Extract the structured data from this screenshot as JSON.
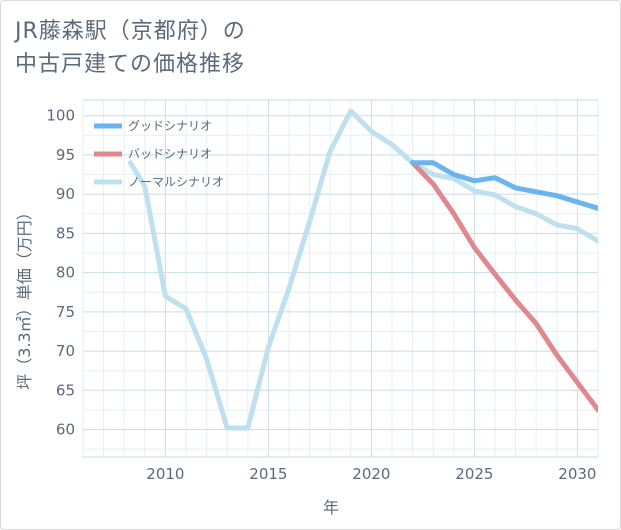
{
  "title_lines": [
    "JR藤森駅（京都府）の",
    "中古戸建ての価格推移"
  ],
  "chart_data": {
    "type": "line",
    "title": "JR藤森駅（京都府）の中古戸建ての価格推移",
    "xlabel": "年",
    "ylabel": "坪（3.3㎡）単価（万円）",
    "xlim": [
      2006,
      2031
    ],
    "ylim": [
      56.5,
      102
    ],
    "xticks": [
      2010,
      2015,
      2020,
      2025,
      2030
    ],
    "yticks": [
      60,
      65,
      70,
      75,
      80,
      85,
      90,
      95,
      100
    ],
    "grid": true,
    "legend_position": "top-left",
    "series": [
      {
        "name": "グッドシナリオ",
        "color": "#6ab4f0",
        "x": [
          2022,
          2023,
          2024,
          2025,
          2026,
          2027,
          2028,
          2029,
          2030,
          2031
        ],
        "y": [
          94.0,
          94.0,
          92.5,
          91.7,
          92.1,
          90.8,
          90.3,
          89.8,
          89.0,
          88.2
        ]
      },
      {
        "name": "バッドシナリオ",
        "color": "#e0888f",
        "x": [
          2022,
          2023,
          2024,
          2025,
          2026,
          2027,
          2028,
          2029,
          2030,
          2031
        ],
        "y": [
          94.0,
          91.3,
          87.5,
          83.2,
          79.8,
          76.5,
          73.5,
          69.5,
          66.0,
          62.5
        ]
      },
      {
        "name": "ノーマルシナリオ",
        "color": "#bfe0ef",
        "x": [
          2008.3,
          2009,
          2010,
          2011,
          2012,
          2013,
          2014,
          2015,
          2016,
          2017,
          2018,
          2019,
          2020,
          2021,
          2022,
          2023,
          2024,
          2025,
          2026,
          2027,
          2028,
          2029,
          2030,
          2031
        ],
        "y": [
          94.0,
          91.0,
          77.0,
          75.4,
          69.0,
          60.2,
          60.2,
          70.5,
          78.0,
          86.5,
          95.5,
          100.6,
          98.0,
          96.3,
          94.0,
          92.5,
          92.0,
          90.4,
          89.9,
          88.4,
          87.5,
          86.1,
          85.6,
          84.0
        ]
      }
    ]
  }
}
